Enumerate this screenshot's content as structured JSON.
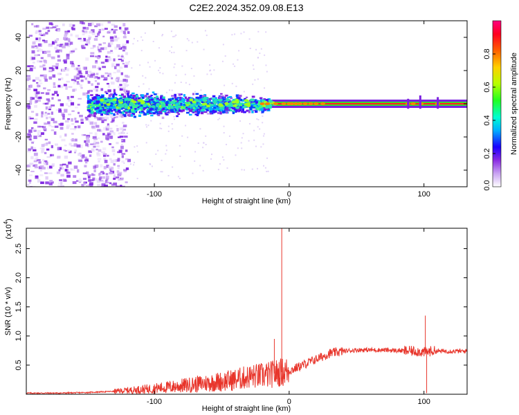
{
  "title": "C2E2.2024.352.09.08.E13",
  "colors": {
    "trace": "#e8352b",
    "axis": "#000000"
  },
  "chart_data": [
    {
      "type": "heatmap",
      "xlabel": "Height of straight line (km)",
      "ylabel": "Frequency (Hz)",
      "xlim": [
        -195,
        132
      ],
      "ylim": [
        -50,
        50
      ],
      "xticks": [
        -100,
        0,
        100
      ],
      "yticks": [
        -40,
        -20,
        0,
        20,
        40
      ],
      "colorbar": {
        "label": "Normalized spectral amplitude",
        "range": [
          0,
          1
        ],
        "ticks": [
          0.2,
          0.4,
          0.6,
          0.8
        ],
        "tick_labels": [
          "0.2",
          "0.4",
          "0.6",
          "0.8"
        ],
        "bottom_label": "0.0"
      },
      "features": [
        {
          "region": "x -195 to -125 km",
          "description": "broad scattered noise across all frequencies, amplitude 0.1-0.3"
        },
        {
          "region": "x -150 to -15 km",
          "description": "main energy band centred at 0 Hz, width about +/-6 Hz, amplitude 0.3-0.5"
        },
        {
          "region": "x -15 to 132 km",
          "description": "narrow line at 0 Hz, amplitude about 1.0"
        }
      ]
    },
    {
      "type": "line",
      "xlabel": "Height of straight line (km)",
      "ylabel": "SNR (10 * v/v)",
      "y_multiplier_label": "(x10",
      "y_multiplier_exp": "4",
      "xlim": [
        -195,
        132
      ],
      "ylim": [
        0,
        2.85
      ],
      "xticks": [
        -100,
        0,
        100
      ],
      "yticks": [
        0.5,
        1.0,
        1.5,
        2.0,
        2.5
      ],
      "ytick_labels": [
        "0.5",
        "1.0",
        "1.5",
        "2.0",
        "2.5"
      ],
      "series": [
        {
          "x": [
            -195,
            -170,
            -150,
            -130,
            -110,
            -90,
            -70,
            -50,
            -40,
            -30,
            -20,
            -15,
            -10,
            -5,
            0,
            10,
            20,
            30,
            40,
            50,
            60,
            70,
            80,
            90,
            95,
            100,
            105,
            110,
            120,
            132
          ],
          "y": [
            0.02,
            0.02,
            0.03,
            0.05,
            0.08,
            0.12,
            0.17,
            0.22,
            0.25,
            0.3,
            0.32,
            0.33,
            0.36,
            0.38,
            0.4,
            0.5,
            0.6,
            0.7,
            0.74,
            0.76,
            0.76,
            0.76,
            0.75,
            0.74,
            0.74,
            0.72,
            0.74,
            0.74,
            0.74,
            0.74
          ]
        }
      ],
      "spikes": [
        {
          "x": -5.5,
          "y": 2.85
        },
        {
          "x": -11,
          "y": 0.95
        },
        {
          "x": 101,
          "y": 1.35
        },
        {
          "x": 102,
          "y": 0.02
        }
      ]
    }
  ]
}
